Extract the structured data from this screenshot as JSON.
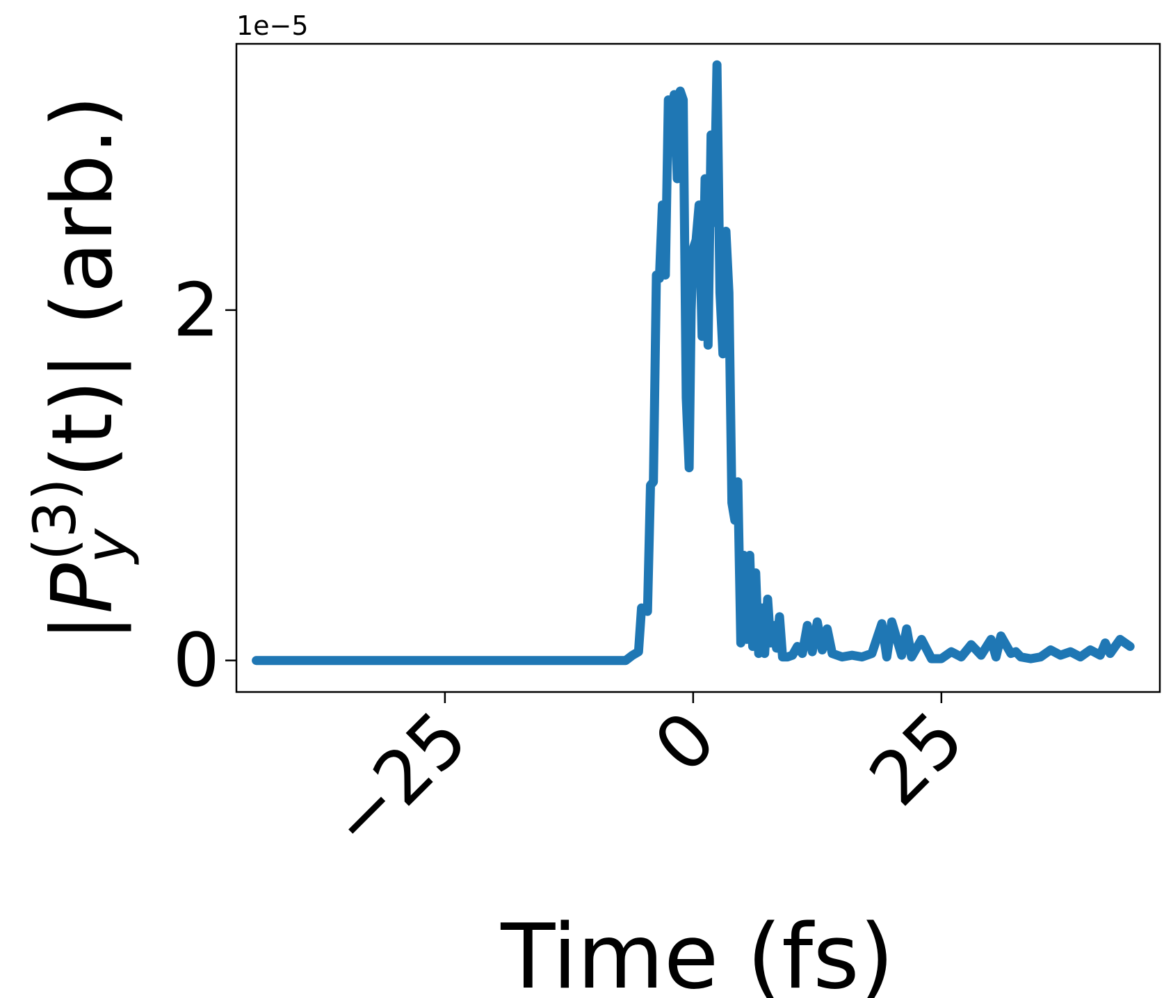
{
  "chart_data": {
    "type": "line",
    "title": "",
    "xlabel": "Time (fs)",
    "ylabel": {
      "prefix": "|",
      "symbol": "P",
      "subscript": "y",
      "superscript": "(3)",
      "suffix": "(t)| (arb.)"
    },
    "y_offset_text": "1e−5",
    "y_scale_factor": 1e-05,
    "xlim": [
      -46,
      47
    ],
    "ylim": [
      -0.18,
      3.52
    ],
    "xticks": [
      -25,
      0,
      25
    ],
    "xtick_labels": [
      "−25",
      "0",
      "25"
    ],
    "yticks": [
      0,
      2
    ],
    "ytick_labels": [
      "0",
      "2"
    ],
    "grid": false,
    "legend": "none",
    "series": [
      {
        "color": "#1f77b4",
        "x": [
          -44.0,
          -6.8,
          -6.1,
          -5.5,
          -5.2,
          -4.6,
          -4.3,
          -4.0,
          -3.7,
          -3.4,
          -3.1,
          -2.8,
          -2.5,
          -2.2,
          -1.9,
          -1.6,
          -1.3,
          -1.0,
          -0.7,
          -0.4,
          -0.2,
          0.0,
          0.3,
          0.6,
          0.9,
          1.2,
          1.5,
          1.8,
          2.1,
          2.4,
          2.7,
          3.0,
          3.3,
          3.6,
          3.9,
          4.2,
          4.5,
          4.8,
          5.1,
          5.4,
          5.7,
          6.0,
          6.3,
          6.6,
          6.9,
          7.2,
          7.5,
          7.8,
          8.1,
          8.4,
          8.7,
          9.0,
          9.5,
          10.0,
          10.5,
          11.0,
          11.5,
          12.0,
          12.5,
          13.0,
          13.5,
          14.0,
          15.0,
          16.0,
          17.0,
          18.0,
          19.0,
          19.5,
          20.0,
          21.0,
          21.5,
          22.0,
          23.0,
          24.0,
          25.0,
          26.0,
          27.0,
          28.0,
          29.0,
          30.0,
          30.5,
          31.0,
          32.0,
          32.5,
          33.0,
          34.0,
          35.0,
          36.0,
          37.0,
          38.0,
          39.0,
          40.0,
          41.0,
          41.5,
          42.0,
          43.0,
          44.0
        ],
        "y": [
          0.0,
          0.0,
          0.03,
          0.05,
          0.3,
          0.28,
          1.0,
          1.02,
          2.2,
          2.18,
          2.6,
          2.2,
          3.2,
          3.15,
          3.23,
          2.75,
          3.25,
          3.2,
          1.5,
          1.1,
          2.0,
          2.35,
          2.4,
          2.6,
          1.85,
          2.75,
          1.8,
          3.0,
          2.5,
          3.4,
          2.1,
          1.75,
          2.45,
          2.1,
          0.9,
          0.8,
          1.02,
          0.1,
          0.6,
          0.12,
          0.6,
          0.08,
          0.5,
          0.04,
          0.3,
          0.04,
          0.35,
          0.1,
          0.2,
          0.07,
          0.25,
          0.02,
          0.02,
          0.03,
          0.08,
          0.04,
          0.2,
          0.05,
          0.22,
          0.06,
          0.18,
          0.04,
          0.02,
          0.03,
          0.02,
          0.04,
          0.21,
          0.02,
          0.22,
          0.03,
          0.18,
          0.02,
          0.12,
          0.01,
          0.01,
          0.05,
          0.02,
          0.09,
          0.03,
          0.12,
          0.02,
          0.14,
          0.04,
          0.05,
          0.02,
          0.01,
          0.02,
          0.06,
          0.03,
          0.05,
          0.02,
          0.06,
          0.03,
          0.1,
          0.04,
          0.12,
          0.08
        ]
      }
    ]
  }
}
